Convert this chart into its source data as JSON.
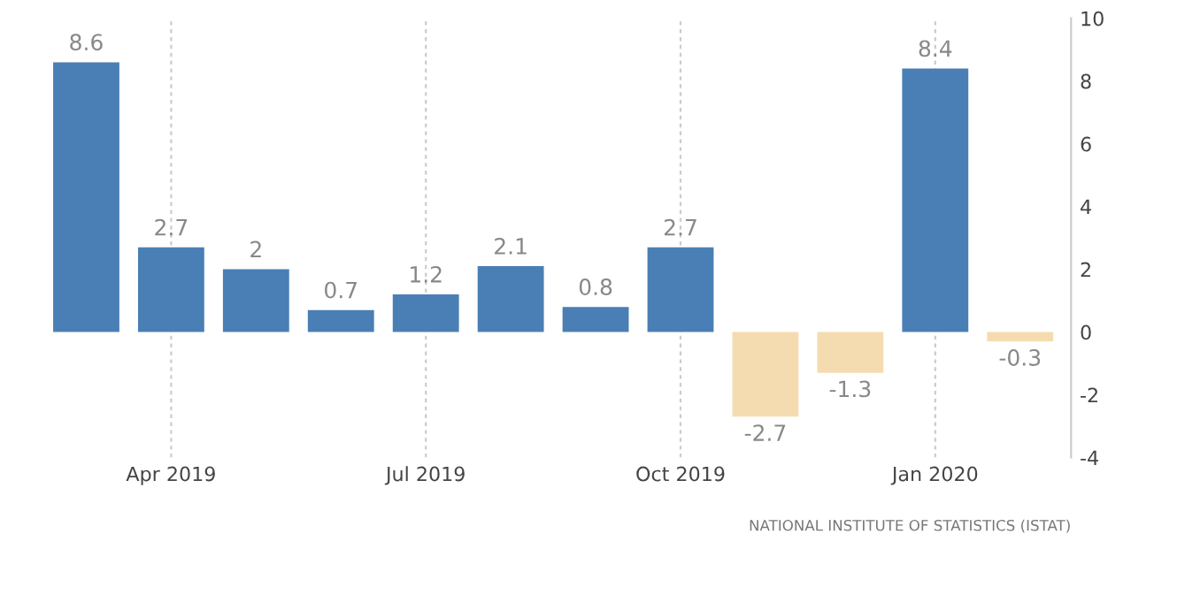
{
  "chart_data": {
    "type": "bar",
    "categories": [
      null,
      "Apr 2019",
      null,
      null,
      "Jul 2019",
      null,
      null,
      "Oct 2019",
      null,
      null,
      "Jan 2020",
      null
    ],
    "values": [
      8.6,
      2.7,
      2,
      0.7,
      1.2,
      2.1,
      0.8,
      2.7,
      -2.7,
      -1.3,
      8.4,
      -0.3
    ],
    "colors": [
      "#4a7fb5",
      "#4a7fb5",
      "#4a7fb5",
      "#4a7fb5",
      "#4a7fb5",
      "#4a7fb5",
      "#4a7fb5",
      "#4a7fb5",
      "#f5dcb0",
      "#f5dcb0",
      "#4a7fb5",
      "#f5dcb0"
    ],
    "ylim": [
      -4,
      10
    ],
    "yticks": [
      -4,
      -2,
      0,
      2,
      4,
      6,
      8,
      10
    ],
    "grid": "x",
    "data_labels": true,
    "annotations": [
      "NATIONAL INSTITUTE OF STATISTICS (ISTAT)"
    ]
  }
}
